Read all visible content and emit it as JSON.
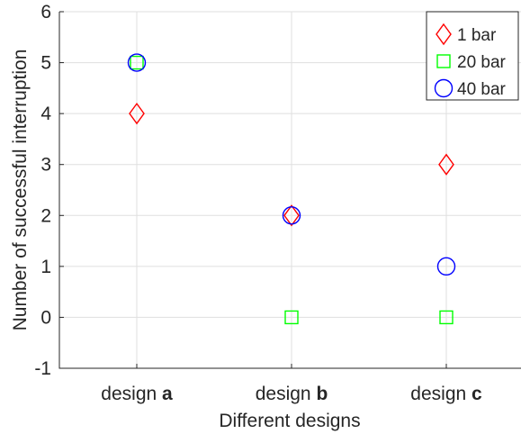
{
  "chart_data": {
    "type": "scatter",
    "categories": [
      {
        "prefix": "design ",
        "bold": "a"
      },
      {
        "prefix": "design ",
        "bold": "b"
      },
      {
        "prefix": "design ",
        "bold": "c"
      }
    ],
    "series": [
      {
        "name": "1 bar",
        "marker": "diamond",
        "color": "#ff0000",
        "values": [
          4,
          2,
          3
        ]
      },
      {
        "name": "20 bar",
        "marker": "square",
        "color": "#00ff00",
        "values": [
          5,
          0,
          0
        ]
      },
      {
        "name": "40 bar",
        "marker": "circle",
        "color": "#0000ff",
        "values": [
          5,
          2,
          1
        ]
      }
    ],
    "xlabel": "Different designs",
    "ylabel": "Number of successful interruption",
    "ylim": [
      -1,
      6
    ],
    "yticks": [
      "-1",
      "0",
      "1",
      "2",
      "3",
      "4",
      "5",
      "6"
    ],
    "grid": true,
    "legend_position": "top-right"
  }
}
